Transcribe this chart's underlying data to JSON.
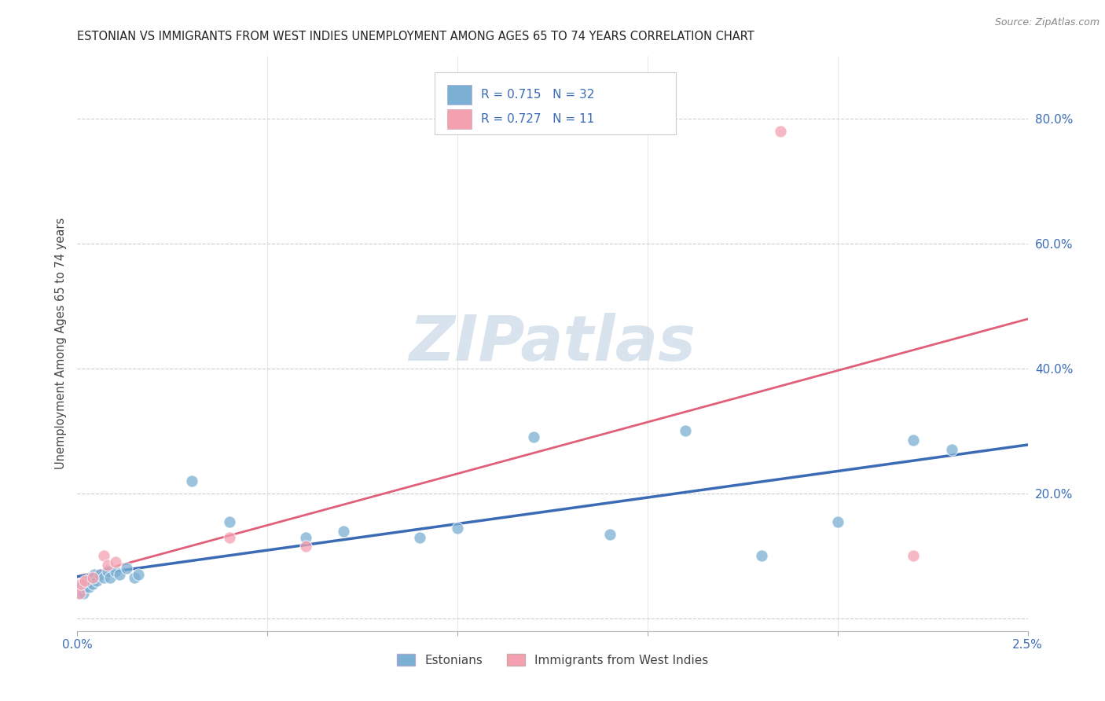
{
  "title": "ESTONIAN VS IMMIGRANTS FROM WEST INDIES UNEMPLOYMENT AMONG AGES 65 TO 74 YEARS CORRELATION CHART",
  "source": "Source: ZipAtlas.com",
  "ylabel": "Unemployment Among Ages 65 to 74 years",
  "legend_estonians": {
    "R": 0.715,
    "N": 32
  },
  "legend_west_indies": {
    "R": 0.727,
    "N": 11
  },
  "bottom_legend_estonians": "Estonians",
  "bottom_legend_west_indies": "Immigrants from West Indies",
  "watermark": "ZIPatlas",
  "blue_color": "#7BAFD4",
  "pink_color": "#F4A0B0",
  "blue_line_color": "#3B6BB5",
  "pink_line_color": "#E0607A",
  "title_color": "#222222",
  "right_axis_color": "#3B6BB5",
  "background_color": "#FFFFFF",
  "est_x": [
    5e-05,
    0.0001,
    0.00015,
    0.0002,
    0.00025,
    0.0003,
    0.00035,
    0.0004,
    0.00045,
    0.0005,
    0.0006,
    0.0007,
    0.0008,
    0.00085,
    0.001,
    0.0011,
    0.0013,
    0.0015,
    0.0016,
    0.003,
    0.004,
    0.006,
    0.007,
    0.009,
    0.01,
    0.012,
    0.014,
    0.016,
    0.018,
    0.02,
    0.022,
    0.023
  ],
  "est_y": [
    0.04,
    0.05,
    0.04,
    0.05,
    0.06,
    0.05,
    0.065,
    0.055,
    0.07,
    0.06,
    0.07,
    0.065,
    0.075,
    0.065,
    0.075,
    0.07,
    0.08,
    0.065,
    0.07,
    0.22,
    0.155,
    0.13,
    0.14,
    0.13,
    0.145,
    0.29,
    0.135,
    0.3,
    0.1,
    0.155,
    0.285,
    0.27
  ],
  "wi_x": [
    5e-05,
    0.0001,
    0.0002,
    0.0004,
    0.0007,
    0.0008,
    0.001,
    0.004,
    0.006,
    0.0185,
    0.022
  ],
  "wi_y": [
    0.04,
    0.055,
    0.06,
    0.065,
    0.1,
    0.085,
    0.09,
    0.13,
    0.115,
    0.78,
    0.1
  ],
  "xlim": [
    0.0,
    0.025
  ],
  "ylim": [
    -0.02,
    0.9
  ],
  "ytick_vals": [
    0.0,
    0.2,
    0.4,
    0.6,
    0.8
  ],
  "ytick_labels": [
    "",
    "20.0%",
    "40.0%",
    "60.0%",
    "80.0%"
  ],
  "xtick_vals": [
    0.0,
    0.005,
    0.01,
    0.015,
    0.02,
    0.025
  ],
  "xtick_labels": [
    "0.0%",
    "",
    "",
    "",
    "",
    "2.5%"
  ]
}
